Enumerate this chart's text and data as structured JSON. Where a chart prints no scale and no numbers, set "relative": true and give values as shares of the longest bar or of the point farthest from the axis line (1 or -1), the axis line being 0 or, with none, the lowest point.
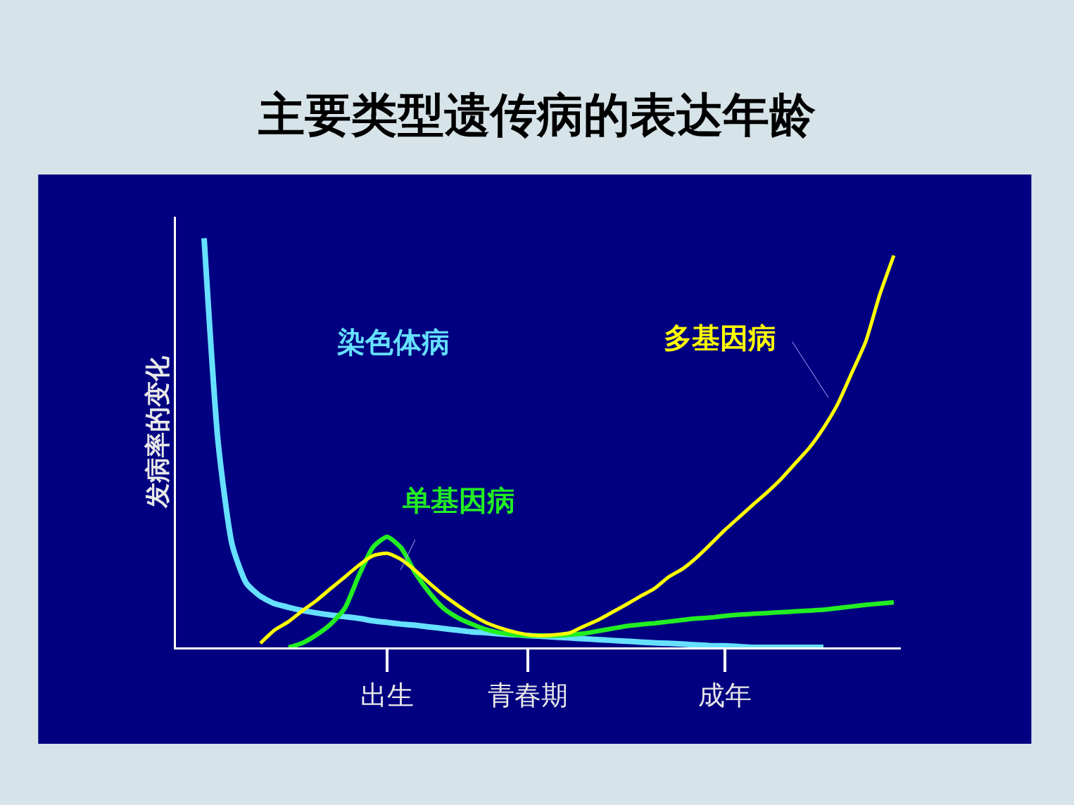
{
  "chart_data": {
    "type": "line",
    "title": "主要类型遗传病的表达年龄",
    "ylabel": "发病率的变化",
    "relative": true,
    "legend": false,
    "grid": false,
    "marker": "none",
    "line_style": "solid",
    "categories": [
      null,
      null,
      null,
      null,
      null,
      null,
      null,
      null,
      null,
      null,
      null,
      null,
      null,
      null,
      null,
      "出生",
      null,
      null,
      null,
      null,
      null,
      null,
      null,
      null,
      null,
      "青春期",
      null,
      null,
      null,
      null,
      null,
      null,
      null,
      null,
      null,
      null,
      null,
      null,
      null,
      "成年",
      null,
      null,
      null,
      null,
      null,
      null,
      null,
      null,
      null,
      null,
      null,
      null
    ],
    "series": [
      {
        "name": "染色体病",
        "color": "#66e0ff",
        "values": [
          null,
          null,
          1.0,
          0.5,
          0.25,
          0.157,
          0.125,
          0.107,
          0.098,
          0.09,
          0.084,
          0.079,
          0.075,
          0.071,
          0.065,
          0.061,
          0.057,
          0.054,
          0.05,
          0.046,
          0.042,
          0.038,
          0.036,
          0.033,
          0.031,
          0.029,
          0.027,
          0.025,
          0.023,
          0.021,
          0.019,
          0.017,
          0.015,
          0.013,
          0.011,
          0.01,
          0.008,
          0.006,
          0.004,
          0.004,
          0.002,
          0,
          0,
          0,
          0,
          0,
          0,
          null,
          null,
          null,
          null,
          null
        ]
      },
      {
        "name": "单基因病",
        "color": "#22ee22",
        "values": [
          null,
          null,
          null,
          null,
          null,
          null,
          null,
          null,
          0,
          0.011,
          0.031,
          0.057,
          0.096,
          0.176,
          0.245,
          0.27,
          0.243,
          0.182,
          0.134,
          0.096,
          0.073,
          0.057,
          0.044,
          0.036,
          0.031,
          0.029,
          0.029,
          0.029,
          0.031,
          0.034,
          0.04,
          0.046,
          0.052,
          0.056,
          0.059,
          0.063,
          0.067,
          0.071,
          0.073,
          0.077,
          0.08,
          0.082,
          0.084,
          0.086,
          0.088,
          0.09,
          0.092,
          0.096,
          0.1,
          0.104,
          0.107,
          0.11
        ]
      },
      {
        "name": "多基因病",
        "color": "#ffff00",
        "values": [
          null,
          null,
          null,
          null,
          null,
          null,
          0.01,
          0.042,
          0.063,
          0.09,
          0.115,
          0.144,
          0.172,
          0.201,
          0.224,
          0.23,
          0.215,
          0.188,
          0.157,
          0.128,
          0.103,
          0.08,
          0.061,
          0.048,
          0.038,
          0.031,
          0.029,
          0.031,
          0.036,
          0.052,
          0.067,
          0.086,
          0.105,
          0.125,
          0.144,
          0.172,
          0.192,
          0.22,
          0.253,
          0.287,
          0.318,
          0.349,
          0.379,
          0.412,
          0.45,
          0.488,
          0.536,
          0.594,
          0.67,
          0.747,
          0.862,
          0.958
        ]
      }
    ]
  }
}
